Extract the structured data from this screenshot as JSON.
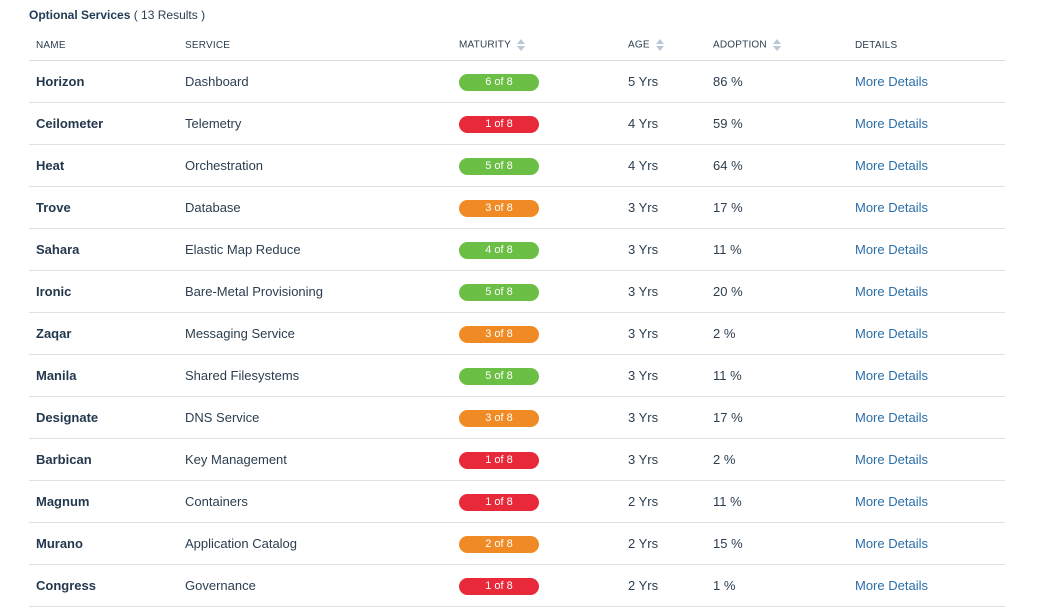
{
  "header": {
    "title": "Optional Services",
    "count": "( 13 Results )"
  },
  "columns": {
    "name": "NAME",
    "service": "SERVICE",
    "maturity": "MATURITY",
    "age": "AGE",
    "adoption": "ADOPTION",
    "details": "DETAILS"
  },
  "colors": {
    "green": "#6cbf45",
    "red": "#e8293a",
    "orange": "#f08a24",
    "link": "#2a6fa8"
  },
  "rows": [
    {
      "name": "Horizon",
      "service": "Dashboard",
      "maturity": "6 of 8",
      "maturity_level": "green",
      "age": "5 Yrs",
      "adoption": "86 %",
      "details": "More Details"
    },
    {
      "name": "Ceilometer",
      "service": "Telemetry",
      "maturity": "1 of 8",
      "maturity_level": "red",
      "age": "4 Yrs",
      "adoption": "59 %",
      "details": "More Details"
    },
    {
      "name": "Heat",
      "service": "Orchestration",
      "maturity": "5 of 8",
      "maturity_level": "green",
      "age": "4 Yrs",
      "adoption": "64 %",
      "details": "More Details"
    },
    {
      "name": "Trove",
      "service": "Database",
      "maturity": "3 of 8",
      "maturity_level": "orange",
      "age": "3 Yrs",
      "adoption": "17 %",
      "details": "More Details"
    },
    {
      "name": "Sahara",
      "service": "Elastic Map Reduce",
      "maturity": "4 of 8",
      "maturity_level": "green",
      "age": "3 Yrs",
      "adoption": "11 %",
      "details": "More Details"
    },
    {
      "name": "Ironic",
      "service": "Bare-Metal Provisioning",
      "maturity": "5 of 8",
      "maturity_level": "green",
      "age": "3 Yrs",
      "adoption": "20 %",
      "details": "More Details"
    },
    {
      "name": "Zaqar",
      "service": "Messaging Service",
      "maturity": "3 of 8",
      "maturity_level": "orange",
      "age": "3 Yrs",
      "adoption": "2 %",
      "details": "More Details"
    },
    {
      "name": "Manila",
      "service": "Shared Filesystems",
      "maturity": "5 of 8",
      "maturity_level": "green",
      "age": "3 Yrs",
      "adoption": "11 %",
      "details": "More Details"
    },
    {
      "name": "Designate",
      "service": "DNS Service",
      "maturity": "3 of 8",
      "maturity_level": "orange",
      "age": "3 Yrs",
      "adoption": "17 %",
      "details": "More Details"
    },
    {
      "name": "Barbican",
      "service": "Key Management",
      "maturity": "1 of 8",
      "maturity_level": "red",
      "age": "3 Yrs",
      "adoption": "2 %",
      "details": "More Details"
    },
    {
      "name": "Magnum",
      "service": "Containers",
      "maturity": "1 of 8",
      "maturity_level": "red",
      "age": "2 Yrs",
      "adoption": "11 %",
      "details": "More Details"
    },
    {
      "name": "Murano",
      "service": "Application Catalog",
      "maturity": "2 of 8",
      "maturity_level": "orange",
      "age": "2 Yrs",
      "adoption": "15 %",
      "details": "More Details"
    },
    {
      "name": "Congress",
      "service": "Governance",
      "maturity": "1 of 8",
      "maturity_level": "red",
      "age": "2 Yrs",
      "adoption": "1 %",
      "details": "More Details"
    }
  ]
}
